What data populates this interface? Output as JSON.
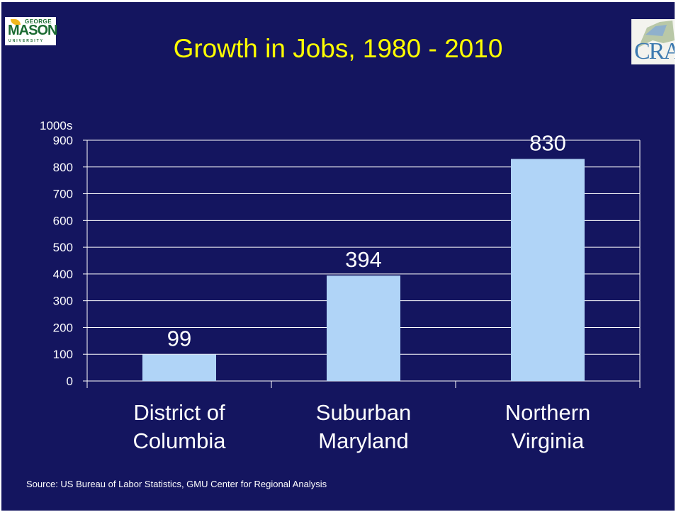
{
  "slide": {
    "title": "Growth in Jobs, 1980 - 2010",
    "source": "Source:  US Bureau of Labor Statistics,  GMU Center for Regional Analysis",
    "logo_left": {
      "name": "george-mason-university-logo",
      "line1": "GEORGE",
      "line2": "MASON",
      "line3": "UNIVERSITY"
    },
    "logo_right": {
      "name": "cra-logo",
      "text": "CRA"
    }
  },
  "colors": {
    "background": "#14155f",
    "title": "#ffff00",
    "bar": "#b0d4f7",
    "text": "#ffffff"
  },
  "chart_data": {
    "type": "bar",
    "title": "Growth in Jobs, 1980 - 2010",
    "unit_label": "1000s",
    "categories": [
      "District of Columbia",
      "Suburban Maryland",
      "Northern Virginia"
    ],
    "category_lines": [
      [
        "District of",
        "Columbia"
      ],
      [
        "Suburban",
        "Maryland"
      ],
      [
        "Northern",
        "Virginia"
      ]
    ],
    "values": [
      99,
      394,
      830
    ],
    "data_labels": [
      "99",
      "394",
      "830"
    ],
    "yticks": [
      "0",
      "100",
      "200",
      "300",
      "400",
      "500",
      "600",
      "700",
      "800",
      "900"
    ],
    "ylim": [
      0,
      900
    ],
    "grid": true,
    "legend": "none"
  }
}
